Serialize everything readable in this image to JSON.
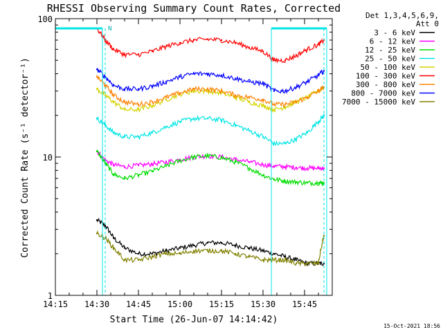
{
  "chart_data": {
    "type": "line",
    "title": "RHESSI Observing Summary Count Rates, Corrected",
    "xlabel": "Start Time (26-Jun-07 14:14:42)",
    "ylabel": "Corrected Count Rate (s⁻¹ detector⁻¹)",
    "footer": "15-Oct-2021 18:56",
    "yscale": "log",
    "ylim": [
      1,
      100
    ],
    "ytick_labels": [
      "1",
      "10",
      "100"
    ],
    "xlim_minutes": [
      "14:15",
      "15:55"
    ],
    "xtick_labels": [
      "14:15",
      "14:30",
      "14:45",
      "15:00",
      "15:15",
      "15:30",
      "15:45"
    ],
    "legend_header": [
      "Det 1,3,4,5,6,9,",
      "Att 0"
    ],
    "legend_placement": "right",
    "marker_label": "N",
    "attenuator_bars": [
      {
        "start": "14:15",
        "end": "14:32"
      },
      {
        "start": "15:33",
        "end": "15:53"
      }
    ],
    "dashed_markers": [
      "14:33",
      "15:52"
    ],
    "data_gaps": [
      "14:15-14:30 partial",
      "15:33-15:37"
    ],
    "x": [
      "14:30",
      "14:33",
      "14:36",
      "14:40",
      "14:45",
      "14:50",
      "14:55",
      "15:00",
      "15:05",
      "15:10",
      "15:15",
      "15:20",
      "15:25",
      "15:30",
      "15:34",
      "15:38",
      "15:42",
      "15:46",
      "15:50",
      "15:52"
    ],
    "series": [
      {
        "name": "3 - 6 keV",
        "color": "#000000",
        "values": [
          3.5,
          3.2,
          2.6,
          2.2,
          2.0,
          2.0,
          2.1,
          2.2,
          2.3,
          2.4,
          2.4,
          2.3,
          2.2,
          2.1,
          2.0,
          1.9,
          1.8,
          1.7,
          1.7,
          1.7
        ]
      },
      {
        "name": "6 - 12 keV",
        "color": "#ff00ff",
        "values": [
          11,
          9.5,
          8.8,
          8.5,
          8.7,
          8.9,
          9.2,
          9.6,
          10.0,
          10.2,
          10.0,
          9.6,
          9.2,
          8.8,
          8.6,
          8.5,
          8.4,
          8.3,
          8.3,
          8.3
        ]
      },
      {
        "name": "12 - 25 keV",
        "color": "#00dd00",
        "values": [
          11,
          9.0,
          7.5,
          7.0,
          7.4,
          7.9,
          8.6,
          9.4,
          10.0,
          10.2,
          9.9,
          9.2,
          8.3,
          7.4,
          6.9,
          6.7,
          6.6,
          6.5,
          6.5,
          6.5
        ]
      },
      {
        "name": "25 - 50 keV",
        "color": "#00e5e5",
        "values": [
          19,
          17,
          15,
          14,
          14,
          15,
          16.5,
          18,
          19,
          19,
          18.5,
          17,
          15.5,
          14,
          12.5,
          12.5,
          13.5,
          15,
          18,
          20
        ]
      },
      {
        "name": "50 - 100 keV",
        "color": "#d4d400",
        "values": [
          31,
          28,
          25,
          22,
          22,
          23.5,
          26,
          28.5,
          30,
          30,
          29,
          27,
          25,
          23.5,
          22,
          23,
          25,
          27,
          30,
          32
        ]
      },
      {
        "name": "100 - 300 keV",
        "color": "#ff0000",
        "values": [
          85,
          70,
          60,
          55,
          55,
          58,
          63,
          67,
          70,
          71,
          70,
          67,
          62,
          58,
          50,
          50,
          54,
          60,
          65,
          70
        ]
      },
      {
        "name": "300 - 800 keV",
        "color": "#ff8000",
        "values": [
          38,
          33,
          28,
          25,
          24,
          25,
          27,
          29,
          31,
          31,
          30,
          28,
          27,
          26,
          24,
          24,
          25,
          27,
          30,
          32
        ]
      },
      {
        "name": "800 - 7000 keV",
        "color": "#0000ff",
        "values": [
          43,
          38,
          33,
          31,
          31,
          32.5,
          35,
          38,
          40,
          40,
          39,
          37,
          35,
          34,
          30,
          30,
          32,
          35,
          39,
          42
        ]
      },
      {
        "name": "7000 - 15000 keV",
        "color": "#808000",
        "values": [
          2.8,
          2.6,
          2.2,
          1.8,
          1.8,
          1.9,
          2.0,
          2.0,
          2.1,
          2.1,
          2.1,
          2.0,
          1.9,
          1.8,
          1.8,
          1.8,
          1.7,
          1.7,
          1.7,
          2.7
        ]
      }
    ]
  }
}
